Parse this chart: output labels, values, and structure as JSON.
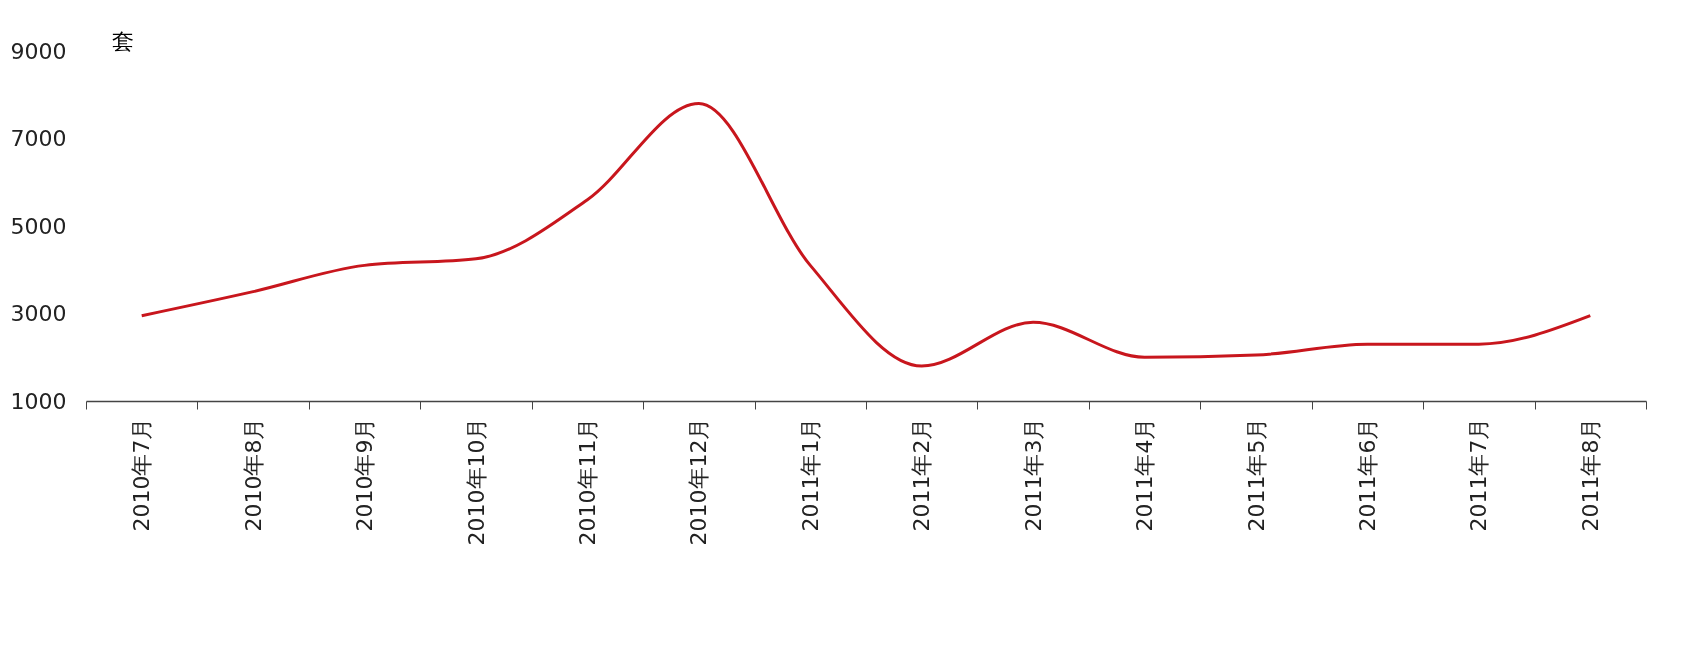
{
  "chart_data": {
    "type": "line",
    "ylabel": "套",
    "categories": [
      "2010年7月",
      "2010年8月",
      "2010年9月",
      "2010年10月",
      "2010年11月",
      "2010年12月",
      "2011年1月",
      "2011年2月",
      "2011年3月",
      "2011年4月",
      "2011年5月",
      "2011年6月",
      "2011年7月",
      "2011年8月"
    ],
    "series": [
      {
        "color": "#c8161d",
        "values": [
          2950,
          3500,
          4100,
          4250,
          5600,
          7800,
          4100,
          1800,
          2800,
          2000,
          2050,
          2300,
          2300,
          2950
        ]
      }
    ],
    "ylim": [
      1000,
      9000
    ],
    "yticks": [
      1000,
      3000,
      5000,
      7000,
      9000
    ],
    "grid": false,
    "legend": false,
    "marker": "none",
    "line_style": "solid"
  }
}
